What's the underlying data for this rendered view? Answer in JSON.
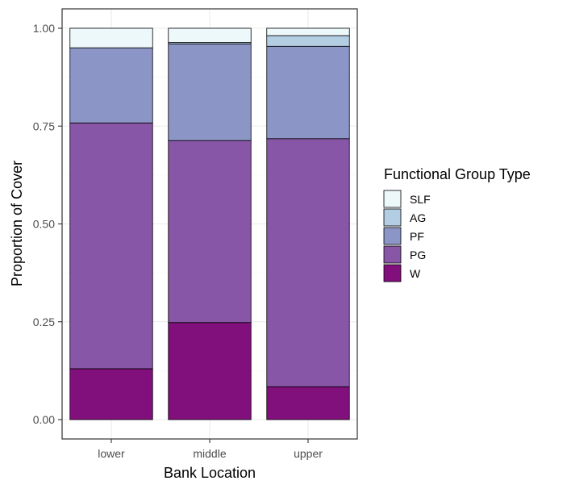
{
  "chart_data": {
    "type": "bar",
    "stacked": true,
    "categories": [
      "lower",
      "middle",
      "upper"
    ],
    "xlabel": "Bank Location",
    "ylabel": "Proportion of Cover",
    "ylim": [
      0,
      1
    ],
    "yticks": [
      "0.00",
      "0.25",
      "0.50",
      "0.75",
      "1.00"
    ],
    "grid": true,
    "legend": {
      "title": "Functional Group Type",
      "position": "right"
    },
    "series": [
      {
        "name": "W",
        "color": "#810f7c",
        "values": [
          0.13,
          0.248,
          0.084
        ]
      },
      {
        "name": "PG",
        "color": "#8856a7",
        "values": [
          0.628,
          0.465,
          0.634
        ]
      },
      {
        "name": "PF",
        "color": "#8c96c6",
        "values": [
          0.192,
          0.247,
          0.236
        ]
      },
      {
        "name": "AG",
        "color": "#b3cde3",
        "values": [
          0.0,
          0.004,
          0.027
        ]
      },
      {
        "name": "SLF",
        "color": "#edf8fb",
        "values": [
          0.05,
          0.036,
          0.019
        ]
      }
    ]
  }
}
